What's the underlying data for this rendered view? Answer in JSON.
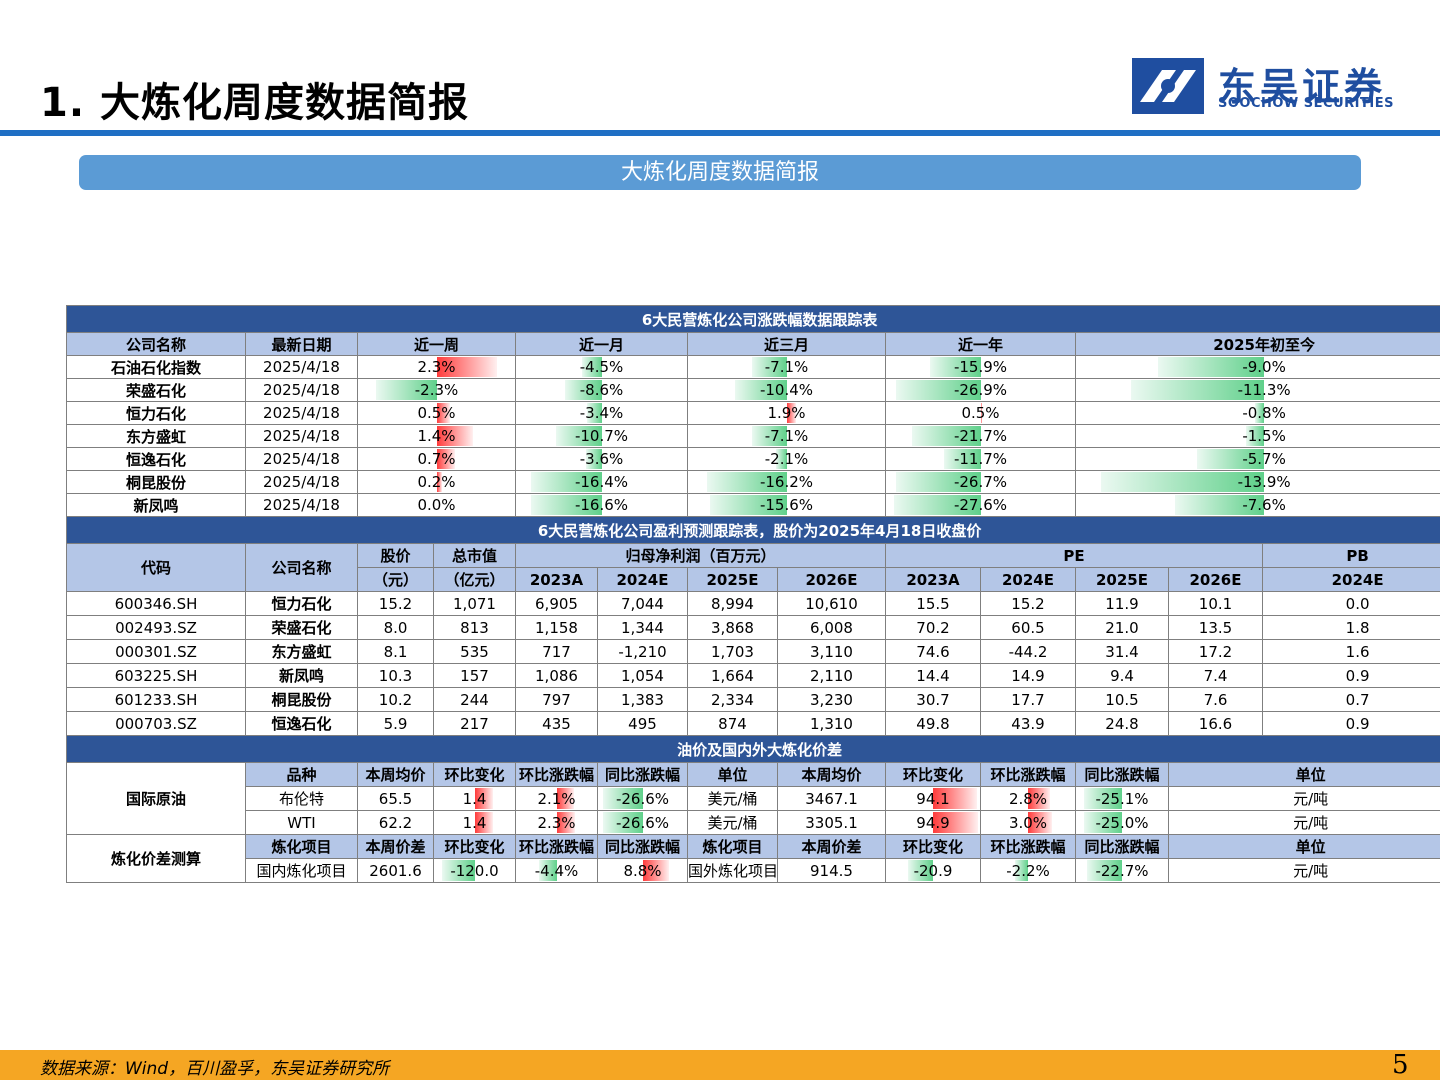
{
  "page": {
    "title": "1. 大炼化周度数据简报",
    "banner": "大炼化周度数据简报",
    "page_number": "5",
    "source": "数据来源：Wind，百川盈孚，东吴证券研究所"
  },
  "logo": {
    "cn": "东吴证券",
    "en": "SOOCHOW SECURITIES"
  },
  "t1": {
    "title": "6大民营炼化公司涨跌幅数据跟踪表",
    "headers": [
      "公司名称",
      "最新日期",
      "近一周",
      "近一月",
      "近三月",
      "近一年",
      "2025年初至今"
    ],
    "rows": [
      {
        "name": "石油石化指数",
        "date": "2025/4/18",
        "vals": [
          "2.3%",
          "-4.5%",
          "-7.1%",
          "-15.9%",
          "-9.0%"
        ],
        "nums": [
          2.3,
          -4.5,
          -7.1,
          -15.9,
          -9.0
        ]
      },
      {
        "name": "荣盛石化",
        "date": "2025/4/18",
        "vals": [
          "-2.3%",
          "-8.6%",
          "-10.4%",
          "-26.9%",
          "-11.3%"
        ],
        "nums": [
          -2.3,
          -8.6,
          -10.4,
          -26.9,
          -11.3
        ]
      },
      {
        "name": "恒力石化",
        "date": "2025/4/18",
        "vals": [
          "0.5%",
          "-3.4%",
          "1.9%",
          "0.5%",
          "-0.8%"
        ],
        "nums": [
          0.5,
          -3.4,
          1.9,
          0.5,
          -0.8
        ]
      },
      {
        "name": "东方盛虹",
        "date": "2025/4/18",
        "vals": [
          "1.4%",
          "-10.7%",
          "-7.1%",
          "-21.7%",
          "-1.5%"
        ],
        "nums": [
          1.4,
          -10.7,
          -7.1,
          -21.7,
          -1.5
        ]
      },
      {
        "name": "恒逸石化",
        "date": "2025/4/18",
        "vals": [
          "0.7%",
          "-3.6%",
          "-2.1%",
          "-11.7%",
          "-5.7%"
        ],
        "nums": [
          0.7,
          -3.6,
          -2.1,
          -11.7,
          -5.7
        ]
      },
      {
        "name": "桐昆股份",
        "date": "2025/4/18",
        "vals": [
          "0.2%",
          "-16.4%",
          "-16.2%",
          "-26.7%",
          "-13.9%"
        ],
        "nums": [
          0.2,
          -16.4,
          -16.2,
          -26.7,
          -13.9
        ]
      },
      {
        "name": "新凤鸣",
        "date": "2025/4/18",
        "vals": [
          "0.0%",
          "-16.6%",
          "-15.6%",
          "-27.6%",
          "-7.6%"
        ],
        "nums": [
          0.0,
          -16.6,
          -15.6,
          -27.6,
          -7.6
        ]
      }
    ]
  },
  "t2": {
    "title": "6大民营炼化公司盈利预测跟踪表，股价为2025年4月18日收盘价",
    "h_code": "代码",
    "h_name": "公司名称",
    "h_price": "股价",
    "h_price_unit": "（元）",
    "h_mcap": "总市值",
    "h_mcap_unit": "（亿元）",
    "h_profit": "归母净利润（百万元）",
    "h_pe": "PE",
    "h_pb": "PB",
    "years": [
      "2023A",
      "2024E",
      "2025E",
      "2026E"
    ],
    "pb_year": "2024E",
    "rows": [
      {
        "code": "600346.SH",
        "name": "恒力石化",
        "cells": [
          "15.2",
          "1,071",
          "6,905",
          "7,044",
          "8,994",
          "10,610",
          "15.5",
          "15.2",
          "11.9",
          "10.1",
          "0.0"
        ]
      },
      {
        "code": "002493.SZ",
        "name": "荣盛石化",
        "cells": [
          "8.0",
          "813",
          "1,158",
          "1,344",
          "3,868",
          "6,008",
          "70.2",
          "60.5",
          "21.0",
          "13.5",
          "1.8"
        ]
      },
      {
        "code": "000301.SZ",
        "name": "东方盛虹",
        "cells": [
          "8.1",
          "535",
          "717",
          "-1,210",
          "1,703",
          "3,110",
          "74.6",
          "-44.2",
          "31.4",
          "17.2",
          "1.6"
        ]
      },
      {
        "code": "603225.SH",
        "name": "新凤鸣",
        "cells": [
          "10.3",
          "157",
          "1,086",
          "1,054",
          "1,664",
          "2,110",
          "14.4",
          "14.9",
          "9.4",
          "7.4",
          "0.9"
        ]
      },
      {
        "code": "601233.SH",
        "name": "桐昆股份",
        "cells": [
          "10.2",
          "244",
          "797",
          "1,383",
          "2,334",
          "3,230",
          "30.7",
          "17.7",
          "10.5",
          "7.6",
          "0.7"
        ]
      },
      {
        "code": "000703.SZ",
        "name": "恒逸石化",
        "cells": [
          "5.9",
          "217",
          "435",
          "495",
          "874",
          "1,310",
          "49.8",
          "43.9",
          "24.8",
          "16.6",
          "0.9"
        ]
      }
    ]
  },
  "t3": {
    "title": "油价及国内外大炼化价差",
    "crude_label": "国际原油",
    "crude_headers": [
      "品种",
      "本周均价",
      "环比变化",
      "环比涨跌幅",
      "同比涨跌幅",
      "单位",
      "本周均价",
      "环比变化",
      "环比涨跌幅",
      "同比涨跌幅",
      "单位"
    ],
    "crude_rows": [
      {
        "cells": [
          "布伦特",
          "65.5",
          "1.4",
          "2.1%",
          "-26.6%",
          "美元/桶",
          "3467.1",
          "94.1",
          "2.8%",
          "-25.1%",
          "元/吨"
        ],
        "nums": [
          1.4,
          2.1,
          -26.6,
          94.1,
          2.8,
          -25.1
        ]
      },
      {
        "cells": [
          "WTI",
          "62.2",
          "1.4",
          "2.3%",
          "-26.6%",
          "美元/桶",
          "3305.1",
          "94.9",
          "3.0%",
          "-25.0%",
          "元/吨"
        ],
        "nums": [
          1.4,
          2.3,
          -26.6,
          94.9,
          3.0,
          -25.0
        ]
      }
    ],
    "spread_label": "炼化价差测算",
    "spread_headers": [
      "炼化项目",
      "本周价差",
      "环比变化",
      "环比涨跌幅",
      "同比涨跌幅",
      "炼化项目",
      "本周价差",
      "环比变化",
      "环比涨跌幅",
      "同比涨跌幅",
      "单位"
    ],
    "spread_row": {
      "cells": [
        "国内炼化项目",
        "2601.6",
        "-120.0",
        "-4.4%",
        "8.8%",
        "国外炼化项目",
        "914.5",
        "-20.9",
        "-2.2%",
        "-22.7%",
        "元/吨"
      ],
      "nums": [
        -120.0,
        -4.4,
        8.8,
        -20.9,
        -2.2,
        -22.7
      ]
    }
  },
  "colors": {
    "section": "#2e5597",
    "header": "#b4c6e7",
    "rule": "#1f6fc4",
    "banner": "#5b9bd5",
    "footer": "#f5a623",
    "neg": "#00b050",
    "pos": "#ff0000"
  }
}
